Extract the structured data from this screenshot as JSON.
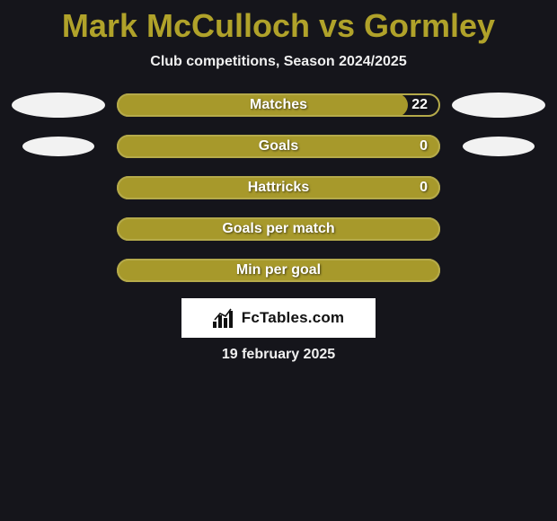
{
  "title": {
    "text": "Mark McCulloch vs Gormley",
    "color": "#b0a22a"
  },
  "subtitle": "Club competitions, Season 2024/2025",
  "colors": {
    "background": "#15151b",
    "bar_fill": "#a7992b",
    "bar_border": "#b5aa4a",
    "bar_bg": "#15151b",
    "text": "#ffffff",
    "oval": "#f2f2f2"
  },
  "rows": [
    {
      "label": "Matches",
      "value": "22",
      "left_pct": 0,
      "right_pct": 90,
      "show_ovals": true,
      "oval_size": "large"
    },
    {
      "label": "Goals",
      "value": "0",
      "left_pct": 0,
      "right_pct": 100,
      "show_ovals": true,
      "oval_size": "small"
    },
    {
      "label": "Hattricks",
      "value": "0",
      "left_pct": 0,
      "right_pct": 100,
      "show_ovals": false
    },
    {
      "label": "Goals per match",
      "value": "",
      "left_pct": 0,
      "right_pct": 100,
      "show_ovals": false
    },
    {
      "label": "Min per goal",
      "value": "",
      "left_pct": 0,
      "right_pct": 100,
      "show_ovals": false
    }
  ],
  "logo": {
    "text": "FcTables.com"
  },
  "date": "19 february 2025"
}
